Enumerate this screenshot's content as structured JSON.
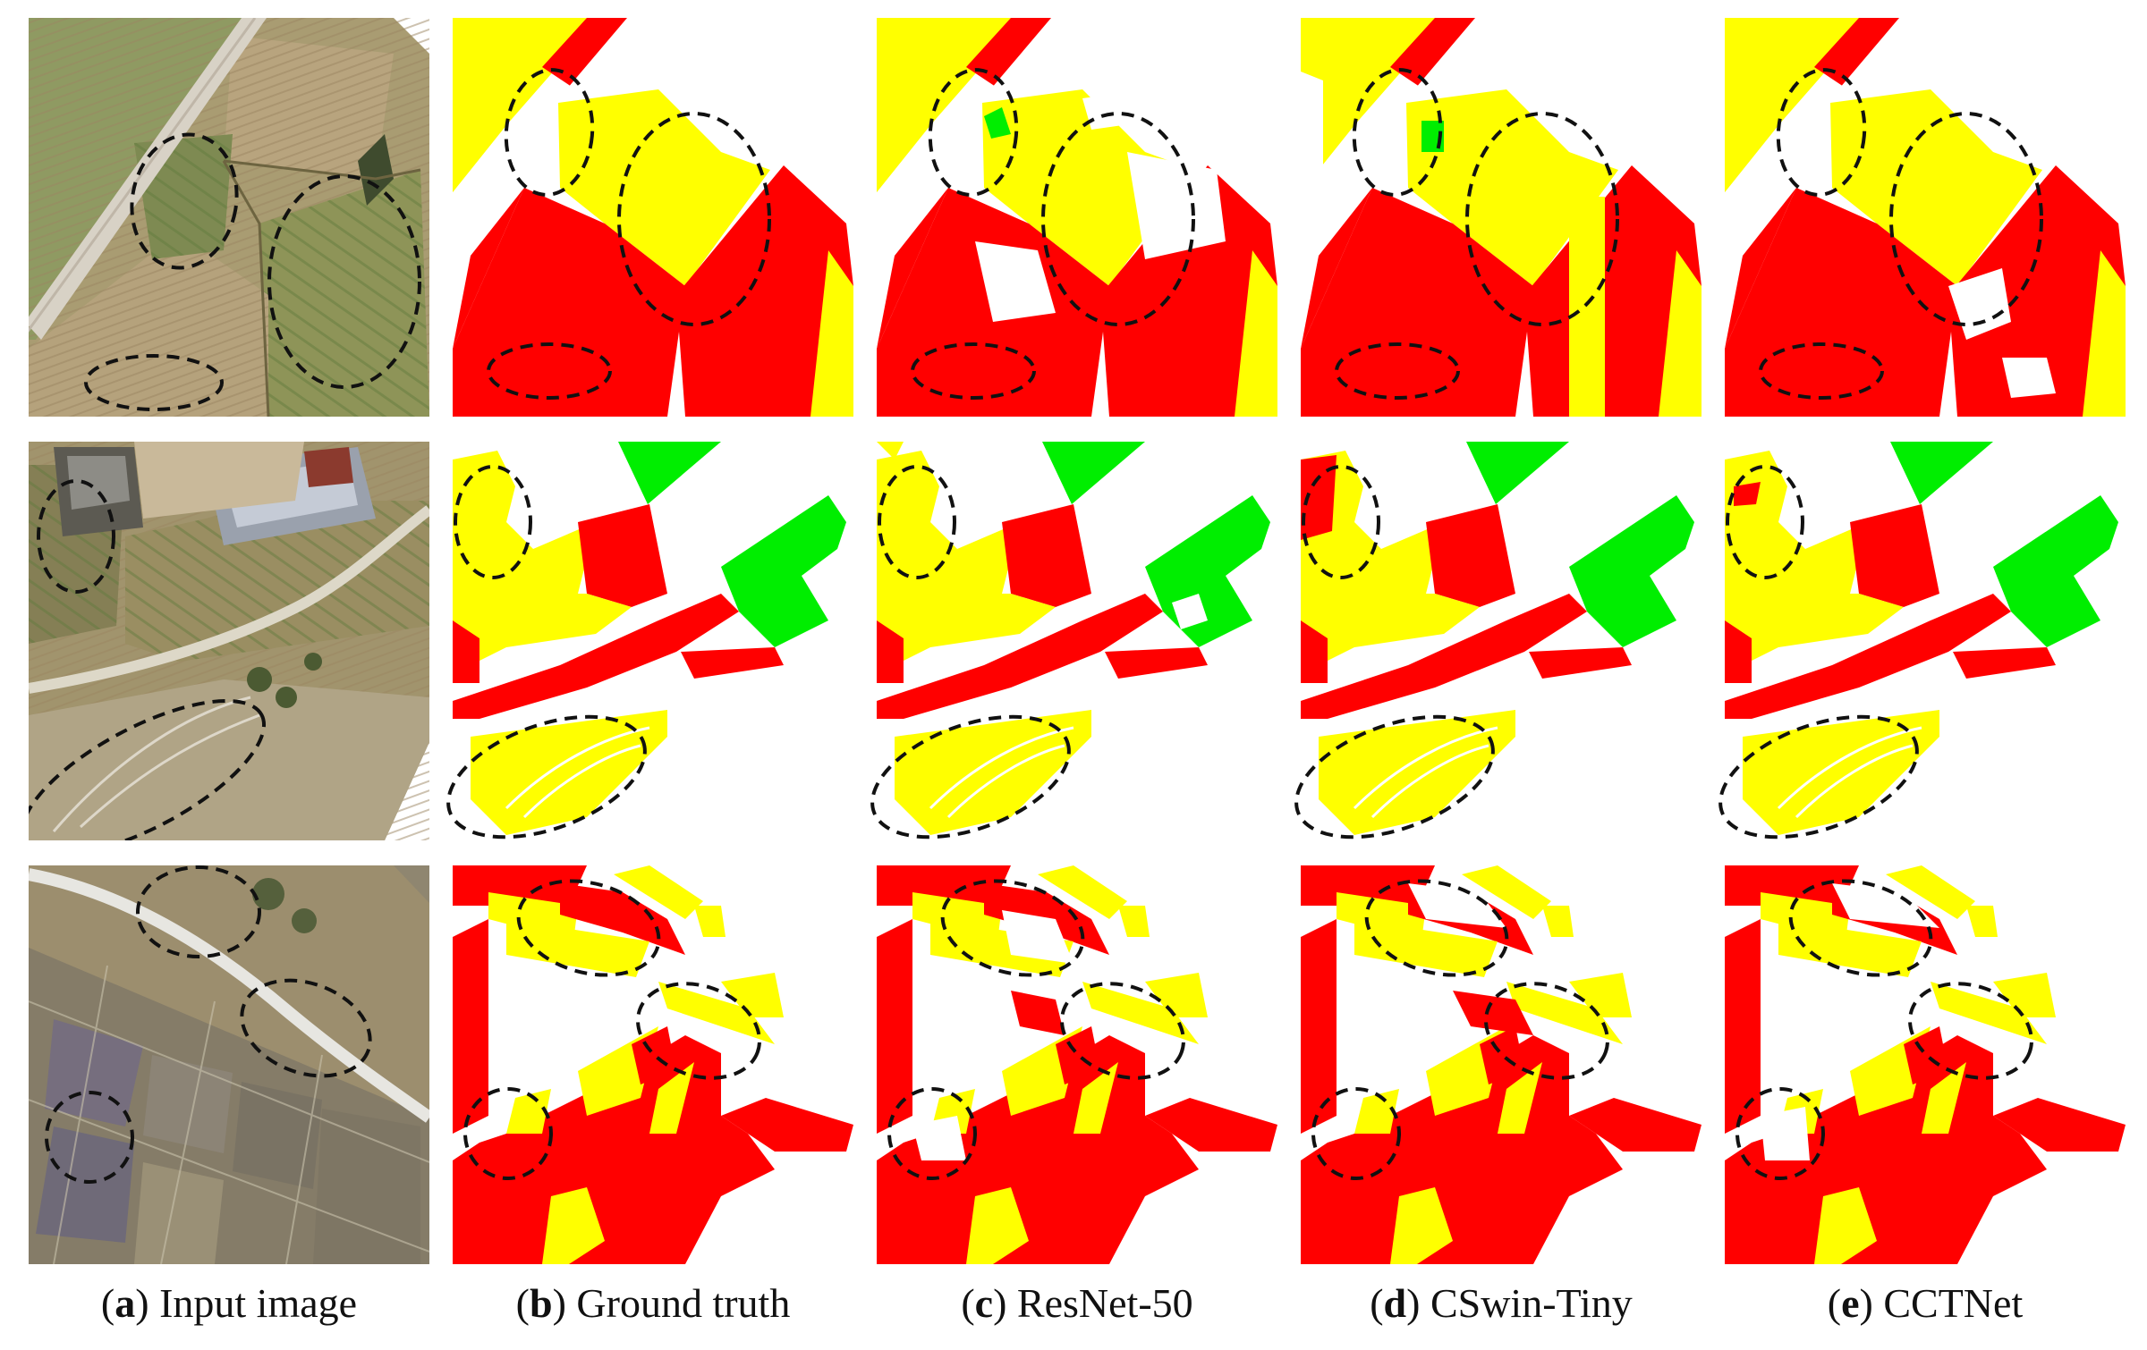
{
  "colors": {
    "class_a": "#ff0000",
    "class_b": "#ffff00",
    "class_c": "#00ee00",
    "background": "#ffffff",
    "ellipse": "#111111"
  },
  "columns": [
    {
      "letter": "a",
      "title": "Input image"
    },
    {
      "letter": "b",
      "title": "Ground truth"
    },
    {
      "letter": "c",
      "title": "ResNet-50"
    },
    {
      "letter": "d",
      "title": "CSwin-Tiny"
    },
    {
      "letter": "e",
      "title": "CCTNet"
    }
  ],
  "rows": [
    {
      "scene": "aerial-farmland-1"
    },
    {
      "scene": "aerial-farmland-2"
    },
    {
      "scene": "aerial-farmland-3"
    }
  ]
}
